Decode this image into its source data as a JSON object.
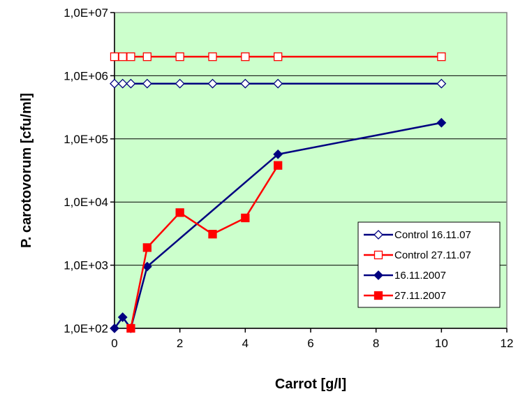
{
  "chart_data": {
    "type": "scatter",
    "title": "",
    "xlabel": "Carrot [g/l]",
    "ylabel": "P. carotovorum [cfu/ml]",
    "xlim": [
      0,
      12
    ],
    "ylim": [
      100,
      10000000
    ],
    "yscale": "log",
    "x_ticks": [
      0,
      2,
      4,
      6,
      8,
      10,
      12
    ],
    "x_tick_labels": [
      "0",
      "2",
      "4",
      "6",
      "8",
      "10",
      "12"
    ],
    "y_ticks": [
      100,
      1000,
      10000,
      100000,
      1000000,
      10000000
    ],
    "y_tick_labels": [
      "1,0E+02",
      "1,0E+03",
      "1,0E+04",
      "1,0E+05",
      "1,0E+06",
      "1,0E+07"
    ],
    "grid": "horizontal",
    "plot_background": "#ccffcc",
    "legend_position": "bottom-right",
    "series": [
      {
        "name": "Control 16.11.07",
        "color": "#000080",
        "marker": "diamond-open",
        "x": [
          0,
          0.25,
          0.5,
          1,
          2,
          3,
          4,
          5,
          10
        ],
        "y": [
          750000,
          750000,
          750000,
          750000,
          750000,
          750000,
          750000,
          750000,
          750000
        ]
      },
      {
        "name": "Control 27.11.07",
        "color": "#ff0000",
        "marker": "square-open",
        "x": [
          0,
          0.25,
          0.5,
          1,
          2,
          3,
          4,
          5,
          10
        ],
        "y": [
          2000000,
          2000000,
          2000000,
          2000000,
          2000000,
          2000000,
          2000000,
          2000000,
          2000000
        ]
      },
      {
        "name": "16.11.2007",
        "color": "#000080",
        "marker": "diamond-filled",
        "x": [
          0,
          0.25,
          0.5,
          1,
          5,
          10
        ],
        "y": [
          100,
          150,
          100,
          950,
          57000,
          180000
        ]
      },
      {
        "name": "27.11.2007",
        "color": "#ff0000",
        "marker": "square-filled",
        "x": [
          0.5,
          1,
          2,
          3,
          4,
          5
        ],
        "y": [
          100,
          1900,
          6800,
          3100,
          5600,
          38000
        ]
      }
    ]
  }
}
